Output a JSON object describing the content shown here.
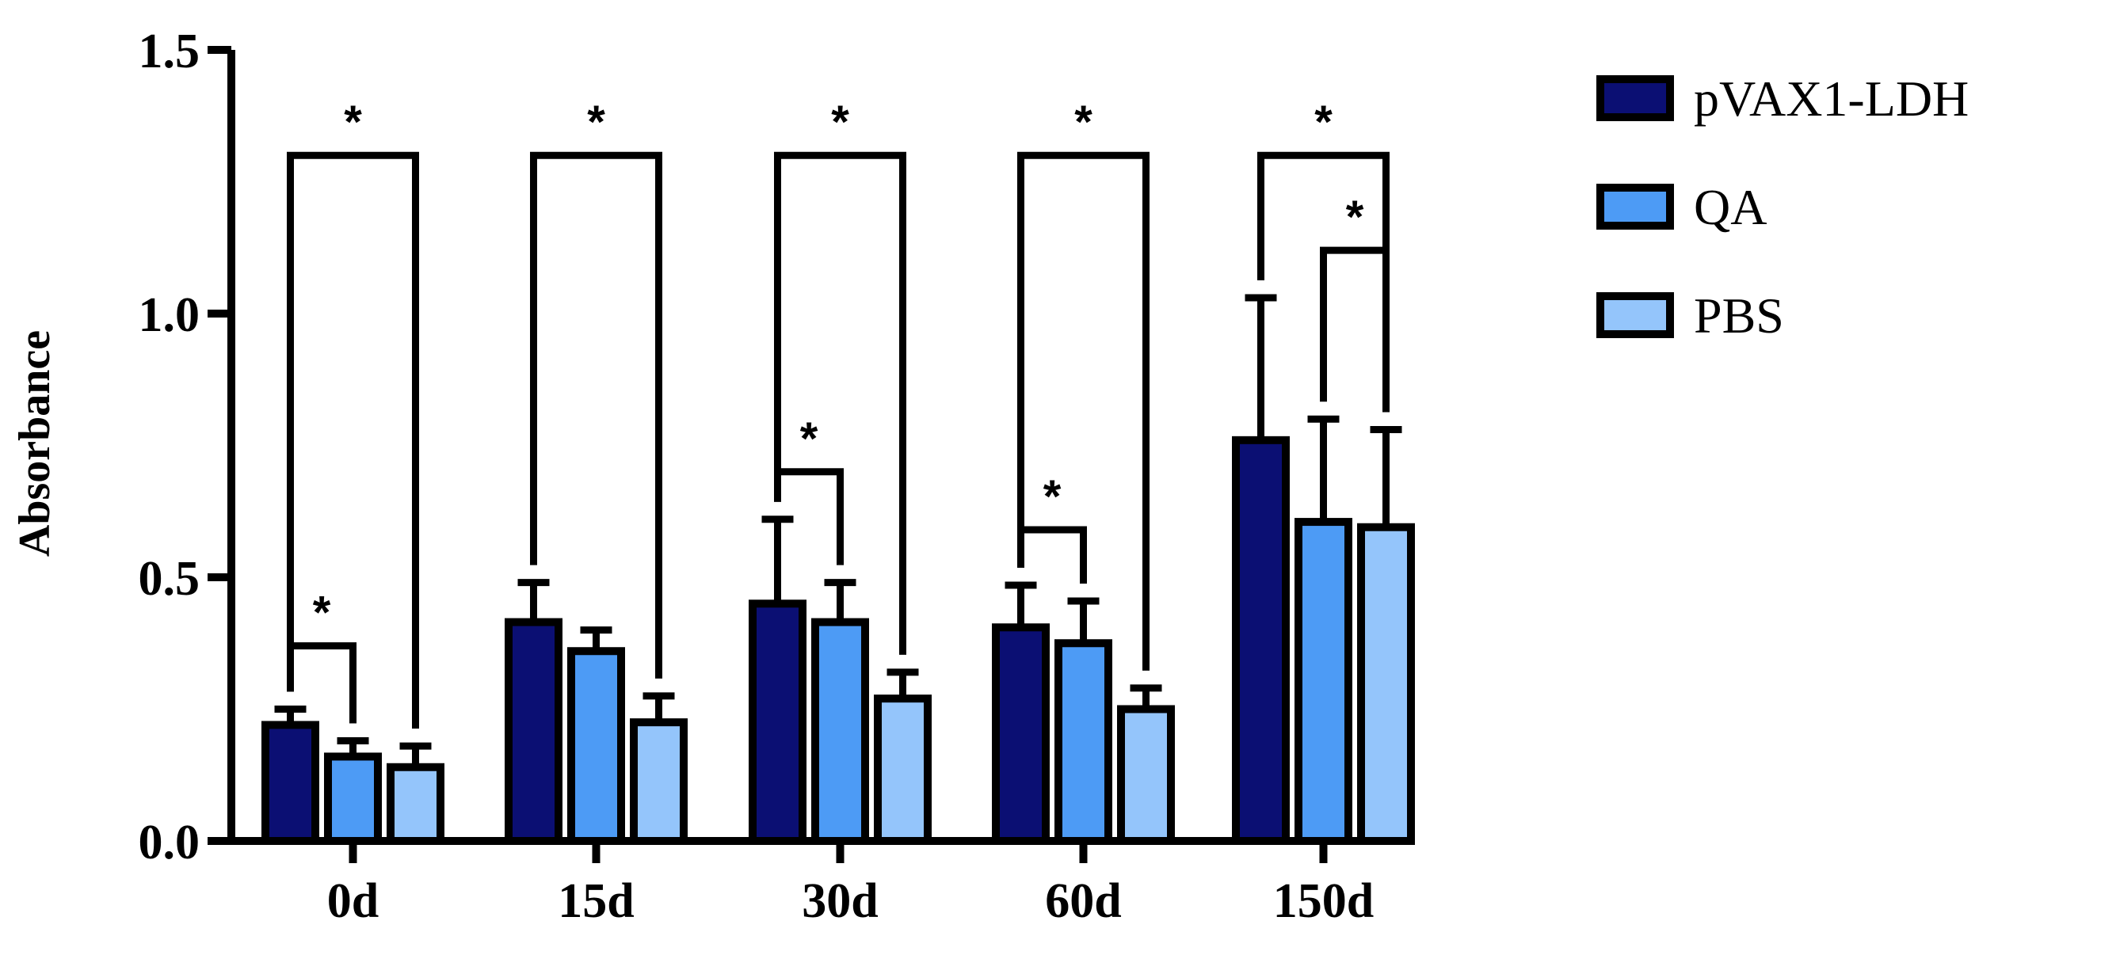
{
  "chart_data": {
    "type": "bar",
    "title": "",
    "xlabel": "",
    "ylabel": "Absorbance",
    "ylim": [
      0,
      1.5
    ],
    "yticks": [
      "0.0",
      "0.5",
      "1.0",
      "1.5"
    ],
    "ytick_values": [
      0,
      0.5,
      1.0,
      1.5
    ],
    "categories": [
      "0d",
      "15d",
      "30d",
      "60d",
      "150d"
    ],
    "legend_position": "right",
    "grid": false,
    "series": [
      {
        "name": "pVAX1-LDH",
        "color": "#0b0f73",
        "values": [
          0.22,
          0.415,
          0.45,
          0.405,
          0.76
        ],
        "errors": [
          0.03,
          0.075,
          0.16,
          0.08,
          0.27
        ]
      },
      {
        "name": "QA",
        "color": "#4d9bf5",
        "values": [
          0.16,
          0.36,
          0.415,
          0.375,
          0.605
        ],
        "errors": [
          0.03,
          0.04,
          0.075,
          0.08,
          0.195
        ]
      },
      {
        "name": "PBS",
        "color": "#94c5fb",
        "values": [
          0.14,
          0.225,
          0.27,
          0.25,
          0.595
        ],
        "errors": [
          0.04,
          0.05,
          0.05,
          0.04,
          0.185
        ]
      }
    ],
    "significance": [
      {
        "category": 0,
        "from": 0,
        "to": 2,
        "label": "*",
        "y": 1.3
      },
      {
        "category": 0,
        "from": 0,
        "to": 1,
        "label": "*",
        "y": 0.37
      },
      {
        "category": 1,
        "from": 0,
        "to": 2,
        "label": "*",
        "y": 1.3
      },
      {
        "category": 2,
        "from": 0,
        "to": 2,
        "label": "*",
        "y": 1.3
      },
      {
        "category": 2,
        "from": 0,
        "to": 1,
        "label": "*",
        "y": 0.7
      },
      {
        "category": 3,
        "from": 0,
        "to": 2,
        "label": "*",
        "y": 1.3
      },
      {
        "category": 3,
        "from": 0,
        "to": 1,
        "label": "*",
        "y": 0.59
      },
      {
        "category": 4,
        "from": 0,
        "to": 2,
        "label": "*",
        "y": 1.3
      },
      {
        "category": 4,
        "from": 1,
        "to": 2,
        "label": "*",
        "y": 1.12
      }
    ]
  }
}
